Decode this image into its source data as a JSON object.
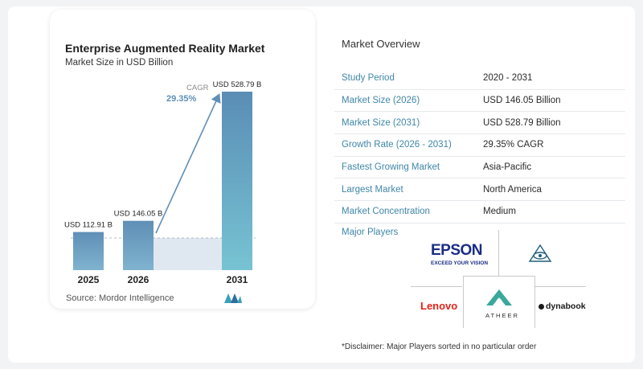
{
  "chart": {
    "title": "Enterprise Augmented Reality Market",
    "subtitle": "Market Size in USD Billion",
    "source": "Source:  Mordor Intelligence",
    "cagr_label": "CAGR",
    "cagr_value": "29.35%"
  },
  "chart_data": {
    "type": "bar",
    "categories": [
      "2025",
      "2026",
      "2031"
    ],
    "values": [
      112.91,
      146.05,
      528.79
    ],
    "value_labels": [
      "USD 112.91 B",
      "USD 146.05 B",
      "USD 528.79 B"
    ],
    "title": "Enterprise Augmented Reality Market",
    "subtitle": "Market Size in USD Billion",
    "ylim": [
      0,
      528.79
    ],
    "colors": [
      "#5f8fb6",
      "#5f8fb6",
      "#5fa0c2"
    ]
  },
  "overview": {
    "title": "Market Overview",
    "rows": [
      {
        "label": "Study Period",
        "value": "2020 - 2031"
      },
      {
        "label": "Market Size (2026)",
        "value": "USD 146.05 Billion"
      },
      {
        "label": "Market Size (2031)",
        "value": "USD 528.79 Billion"
      },
      {
        "label": "Growth Rate (2026 - 2031)",
        "value": "29.35% CAGR"
      },
      {
        "label": "Fastest Growing Market",
        "value": "Asia-Pacific"
      },
      {
        "label": "Largest Market",
        "value": "North America"
      },
      {
        "label": "Market Concentration",
        "value": "Medium"
      }
    ],
    "players_title": "Major Players",
    "disclaimer": "*Disclaimer: Major Players sorted in no particular order"
  },
  "players": {
    "epson": "EPSON",
    "epson_tagline": "EXCEED YOUR VISION",
    "lenovo": "Lenovo",
    "atheer": "ATHEER",
    "dynabook": "dynabook"
  },
  "colors": {
    "accent": "#3f86a8",
    "bar": "#5f8fb6",
    "bar_light": "#dfe8f0"
  }
}
